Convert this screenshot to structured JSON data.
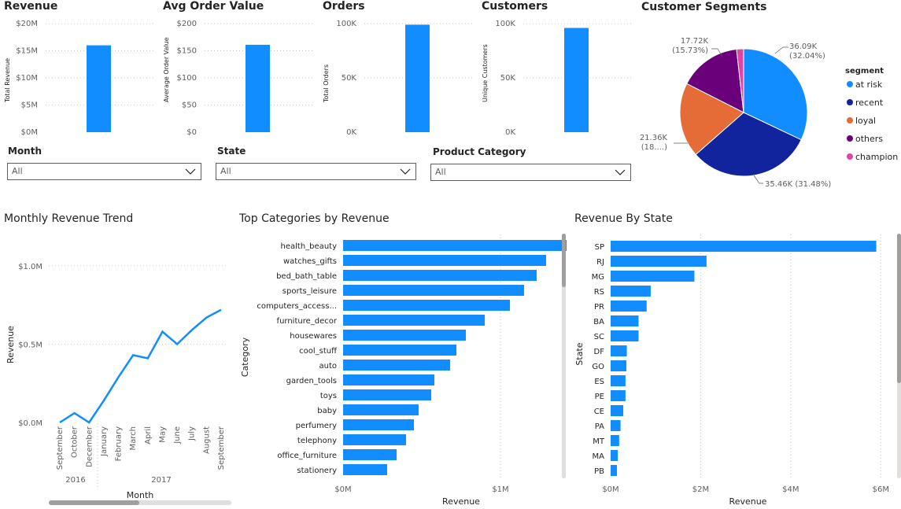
{
  "kpis": {
    "revenue": {
      "title": "Revenue",
      "ylabel": "Total Revenue",
      "ticks": [
        "$20M",
        "$15M",
        "$10M",
        "$5M",
        "$0M"
      ],
      "value": 16.0,
      "max": 20
    },
    "aov": {
      "title": "Avg Order Value",
      "ylabel": "Average Order Value",
      "ticks": [
        "$200",
        "$150",
        "$100",
        "$50",
        "$0"
      ],
      "value": 161,
      "max": 200
    },
    "orders": {
      "title": "Orders",
      "ylabel": "Total Orders",
      "ticks": [
        "100K",
        "50K",
        "0K"
      ],
      "value": 99,
      "max": 100
    },
    "customers": {
      "title": "Customers",
      "ylabel": "Unique Customers",
      "ticks": [
        "100K",
        "50K",
        "0K"
      ],
      "value": 96,
      "max": 100
    }
  },
  "slicers": {
    "month": {
      "label": "Month",
      "value": "All"
    },
    "state": {
      "label": "State",
      "value": "All"
    },
    "category": {
      "label": "Product Category",
      "value": "All"
    }
  },
  "segments": {
    "title": "Customer Segments",
    "legend_title": "segment",
    "items": [
      {
        "name": "at risk",
        "value": 36.09,
        "label1": "36.09K",
        "label2": "(32.04%)",
        "color": "#118dff"
      },
      {
        "name": "recent",
        "value": 35.46,
        "label1": "35.46K (31.48%)",
        "label2": "",
        "color": "#12239e"
      },
      {
        "name": "loyal",
        "value": 21.36,
        "label1": "21.36K",
        "label2": "(18....)",
        "color": "#e66c37"
      },
      {
        "name": "others",
        "value": 17.72,
        "label1": "17.72K",
        "label2": "(15.73%)",
        "color": "#6b007b"
      },
      {
        "name": "champion",
        "value": 2.0,
        "label1": "",
        "label2": "",
        "color": "#e044a7"
      }
    ]
  },
  "trend": {
    "title": "Monthly Revenue Trend",
    "ylabel": "Revenue",
    "xlabel": "Month",
    "yticks": [
      "$1.0M",
      "$0.5M",
      "$0.0M"
    ],
    "months": [
      "September",
      "October",
      "December",
      "January",
      "February",
      "March",
      "April",
      "May",
      "June",
      "July",
      "August",
      "September"
    ],
    "years": [
      "2016",
      "2017"
    ],
    "values": [
      0.0,
      0.06,
      0.0,
      0.14,
      0.29,
      0.43,
      0.41,
      0.58,
      0.5,
      0.59,
      0.67,
      0.72
    ],
    "color": "#118dff"
  },
  "categories": {
    "title": "Top Categories by Revenue",
    "ylabel": "Category",
    "xlabel": "Revenue",
    "xticks": [
      "$0M",
      "$1M"
    ],
    "names": [
      "health_beauty",
      "watches_gifts",
      "bed_bath_table",
      "sports_leisure",
      "computers_access...",
      "furniture_decor",
      "housewares",
      "cool_stuff",
      "auto",
      "garden_tools",
      "toys",
      "baby",
      "perfumery",
      "telephony",
      "office_furniture",
      "stationery"
    ],
    "values": [
      1.44,
      1.29,
      1.23,
      1.15,
      1.06,
      0.9,
      0.78,
      0.72,
      0.68,
      0.58,
      0.56,
      0.48,
      0.45,
      0.4,
      0.34,
      0.28
    ],
    "max": 1.5,
    "color": "#118dff"
  },
  "states": {
    "title": "Revenue By State",
    "ylabel": "State",
    "xlabel": "Revenue",
    "xticks": [
      "$0M",
      "$2M",
      "$4M",
      "$6M"
    ],
    "names": [
      "SP",
      "RJ",
      "MG",
      "RS",
      "PR",
      "BA",
      "SC",
      "DF",
      "GO",
      "ES",
      "PE",
      "CE",
      "PA",
      "MT",
      "MA",
      "PB"
    ],
    "values": [
      5.9,
      2.13,
      1.86,
      0.89,
      0.8,
      0.62,
      0.62,
      0.36,
      0.35,
      0.33,
      0.33,
      0.28,
      0.22,
      0.19,
      0.16,
      0.14
    ],
    "max": 6.1,
    "color": "#118dff"
  }
}
